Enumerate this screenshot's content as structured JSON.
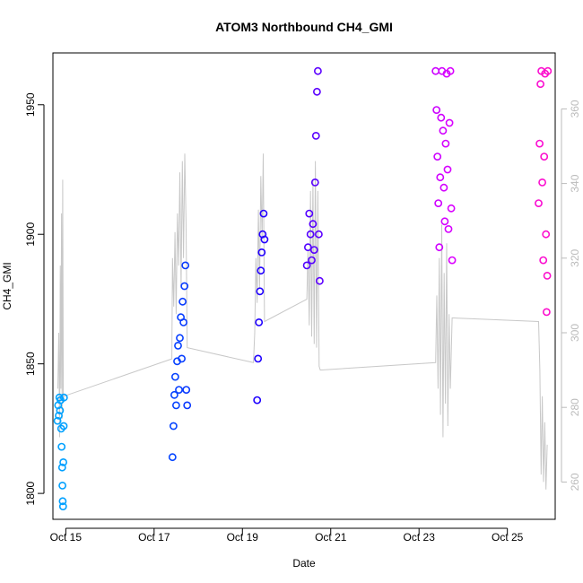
{
  "chart_data": {
    "type": "scatter",
    "title": "ATOM3 Northbound CH4_GMI",
    "xlabel": "Date",
    "ylabel": "CH4_GMI",
    "y2label": "",
    "grid": false,
    "legend": "none",
    "x_range": [
      "2016-10-14T17:00",
      "2016-10-26T02:00"
    ],
    "ylim": [
      1790,
      1970
    ],
    "y2lim": [
      250,
      375
    ],
    "x_ticks": [
      {
        "date": "2016-10-15",
        "label": "Oct 15"
      },
      {
        "date": "2016-10-17",
        "label": "Oct 17"
      },
      {
        "date": "2016-10-19",
        "label": "Oct 19"
      },
      {
        "date": "2016-10-21",
        "label": "Oct 21"
      },
      {
        "date": "2016-10-23",
        "label": "Oct 23"
      },
      {
        "date": "2016-10-25",
        "label": "Oct 25"
      }
    ],
    "y_ticks": [
      1800,
      1850,
      1900,
      1950
    ],
    "y2_ticks": [
      260,
      280,
      300,
      320,
      340,
      360
    ],
    "colors": {
      "secondary_line": "#c8c8c8",
      "axis": "#000000",
      "right_axis": "#bbbbbb",
      "point_gradient": [
        "#00a8ff",
        "#0055ff",
        "#1a00ff",
        "#8000ff",
        "#dd00ff",
        "#ff10c8"
      ]
    },
    "series": [
      {
        "type": "line",
        "axis": "right",
        "points": [
          [
            "2016-10-14T19:40",
            285
          ],
          [
            "2016-10-14T20:10",
            300
          ],
          [
            "2016-10-14T20:40",
            272
          ],
          [
            "2016-10-14T21:00",
            318
          ],
          [
            "2016-10-14T21:20",
            285
          ],
          [
            "2016-10-14T21:40",
            332
          ],
          [
            "2016-10-14T22:00",
            277
          ],
          [
            "2016-10-14T22:20",
            341
          ],
          [
            "2016-10-14T22:40",
            282
          ],
          [
            "2016-10-14T23:00",
            283
          ],
          [
            "2016-10-17T09:40",
            293
          ],
          [
            "2016-10-17T10:00",
            320
          ],
          [
            "2016-10-17T10:40",
            307
          ],
          [
            "2016-10-17T11:20",
            327
          ],
          [
            "2016-10-17T12:00",
            305
          ],
          [
            "2016-10-17T12:40",
            332
          ],
          [
            "2016-10-17T13:20",
            318
          ],
          [
            "2016-10-17T14:00",
            343
          ],
          [
            "2016-10-17T14:40",
            312
          ],
          [
            "2016-10-17T15:20",
            346
          ],
          [
            "2016-10-17T16:00",
            320
          ],
          [
            "2016-10-17T16:40",
            348
          ],
          [
            "2016-10-17T17:20",
            330
          ],
          [
            "2016-10-17T18:00",
            296
          ],
          [
            "2016-10-19T06:00",
            292
          ],
          [
            "2016-10-19T06:40",
            300
          ],
          [
            "2016-10-19T07:20",
            320
          ],
          [
            "2016-10-19T08:00",
            308
          ],
          [
            "2016-10-19T08:40",
            333
          ],
          [
            "2016-10-19T09:20",
            312
          ],
          [
            "2016-10-19T10:00",
            342
          ],
          [
            "2016-10-19T10:40",
            325
          ],
          [
            "2016-10-19T11:20",
            348
          ],
          [
            "2016-10-19T12:00",
            303
          ],
          [
            "2016-10-20T11:00",
            309
          ],
          [
            "2016-10-20T11:40",
            322
          ],
          [
            "2016-10-20T12:20",
            302
          ],
          [
            "2016-10-20T13:00",
            338
          ],
          [
            "2016-10-20T13:40",
            299
          ],
          [
            "2016-10-20T14:20",
            341
          ],
          [
            "2016-10-20T15:00",
            297
          ],
          [
            "2016-10-20T15:40",
            346
          ],
          [
            "2016-10-20T16:20",
            296
          ],
          [
            "2016-10-20T17:00",
            338
          ],
          [
            "2016-10-20T17:40",
            291
          ],
          [
            "2016-10-20T18:20",
            290
          ],
          [
            "2016-10-23T09:00",
            292
          ],
          [
            "2016-10-23T09:40",
            310
          ],
          [
            "2016-10-23T10:20",
            285
          ],
          [
            "2016-10-23T11:00",
            320
          ],
          [
            "2016-10-23T11:40",
            278
          ],
          [
            "2016-10-23T12:20",
            329
          ],
          [
            "2016-10-23T13:00",
            272
          ],
          [
            "2016-10-23T13:40",
            316
          ],
          [
            "2016-10-23T14:20",
            281
          ],
          [
            "2016-10-23T15:00",
            324
          ],
          [
            "2016-10-23T15:40",
            275
          ],
          [
            "2016-10-23T16:20",
            305
          ],
          [
            "2016-10-23T17:00",
            285
          ],
          [
            "2016-10-23T18:00",
            304
          ],
          [
            "2016-10-25T17:00",
            303
          ],
          [
            "2016-10-25T17:40",
            290
          ],
          [
            "2016-10-25T18:20",
            262
          ],
          [
            "2016-10-25T19:00",
            283
          ],
          [
            "2016-10-25T19:40",
            260
          ],
          [
            "2016-10-25T20:20",
            276
          ],
          [
            "2016-10-25T21:00",
            258
          ],
          [
            "2016-10-25T21:40",
            270
          ]
        ]
      },
      {
        "type": "scatter",
        "axis": "left",
        "marker": "open-circle",
        "points": [
          [
            "2016-10-14T19:30",
            1828
          ],
          [
            "2016-10-14T19:50",
            1834
          ],
          [
            "2016-10-14T20:10",
            1830
          ],
          [
            "2016-10-14T20:30",
            1837
          ],
          [
            "2016-10-14T20:50",
            1832
          ],
          [
            "2016-10-14T21:10",
            1836
          ],
          [
            "2016-10-14T21:30",
            1825
          ],
          [
            "2016-10-14T21:45",
            1818
          ],
          [
            "2016-10-14T22:00",
            1810
          ],
          [
            "2016-10-14T22:10",
            1803
          ],
          [
            "2016-10-14T22:20",
            1797
          ],
          [
            "2016-10-14T22:30",
            1795
          ],
          [
            "2016-10-14T22:40",
            1812
          ],
          [
            "2016-10-14T22:50",
            1826
          ],
          [
            "2016-10-14T23:00",
            1837
          ],
          [
            "2016-10-17T10:00",
            1814
          ],
          [
            "2016-10-17T10:30",
            1826
          ],
          [
            "2016-10-17T11:00",
            1838
          ],
          [
            "2016-10-17T11:30",
            1845
          ],
          [
            "2016-10-17T12:00",
            1834
          ],
          [
            "2016-10-17T12:30",
            1851
          ],
          [
            "2016-10-17T13:00",
            1857
          ],
          [
            "2016-10-17T13:30",
            1840
          ],
          [
            "2016-10-17T14:00",
            1860
          ],
          [
            "2016-10-17T14:30",
            1868
          ],
          [
            "2016-10-17T15:00",
            1852
          ],
          [
            "2016-10-17T15:30",
            1874
          ],
          [
            "2016-10-17T16:00",
            1866
          ],
          [
            "2016-10-17T16:30",
            1880
          ],
          [
            "2016-10-17T17:00",
            1888
          ],
          [
            "2016-10-17T17:30",
            1840
          ],
          [
            "2016-10-17T18:00",
            1834
          ],
          [
            "2016-10-19T08:00",
            1836
          ],
          [
            "2016-10-19T08:30",
            1852
          ],
          [
            "2016-10-19T09:00",
            1866
          ],
          [
            "2016-10-19T09:30",
            1878
          ],
          [
            "2016-10-19T10:00",
            1886
          ],
          [
            "2016-10-19T10:30",
            1893
          ],
          [
            "2016-10-19T11:00",
            1900
          ],
          [
            "2016-10-19T11:30",
            1908
          ],
          [
            "2016-10-19T12:00",
            1898
          ],
          [
            "2016-10-20T11:00",
            1888
          ],
          [
            "2016-10-20T11:40",
            1895
          ],
          [
            "2016-10-20T12:20",
            1908
          ],
          [
            "2016-10-20T13:00",
            1900
          ],
          [
            "2016-10-20T13:40",
            1890
          ],
          [
            "2016-10-20T14:20",
            1904
          ],
          [
            "2016-10-20T15:00",
            1894
          ],
          [
            "2016-10-20T15:30",
            1920
          ],
          [
            "2016-10-20T16:00",
            1938
          ],
          [
            "2016-10-20T16:30",
            1955
          ],
          [
            "2016-10-20T17:00",
            1963
          ],
          [
            "2016-10-20T17:30",
            1900
          ],
          [
            "2016-10-20T18:00",
            1882
          ],
          [
            "2016-10-23T09:00",
            1963
          ],
          [
            "2016-10-23T09:30",
            1948
          ],
          [
            "2016-10-23T10:00",
            1930
          ],
          [
            "2016-10-23T10:30",
            1912
          ],
          [
            "2016-10-23T11:00",
            1895
          ],
          [
            "2016-10-23T11:30",
            1922
          ],
          [
            "2016-10-23T12:00",
            1945
          ],
          [
            "2016-10-23T12:30",
            1963
          ],
          [
            "2016-10-23T13:00",
            1940
          ],
          [
            "2016-10-23T13:30",
            1918
          ],
          [
            "2016-10-23T14:00",
            1905
          ],
          [
            "2016-10-23T14:30",
            1935
          ],
          [
            "2016-10-23T15:00",
            1962
          ],
          [
            "2016-10-23T15:30",
            1925
          ],
          [
            "2016-10-23T16:00",
            1902
          ],
          [
            "2016-10-23T16:30",
            1943
          ],
          [
            "2016-10-23T17:00",
            1963
          ],
          [
            "2016-10-23T17:30",
            1910
          ],
          [
            "2016-10-23T18:00",
            1890
          ],
          [
            "2016-10-25T17:00",
            1912
          ],
          [
            "2016-10-25T17:30",
            1935
          ],
          [
            "2016-10-25T18:00",
            1958
          ],
          [
            "2016-10-25T18:30",
            1963
          ],
          [
            "2016-10-25T19:00",
            1920
          ],
          [
            "2016-10-25T19:30",
            1890
          ],
          [
            "2016-10-25T20:00",
            1930
          ],
          [
            "2016-10-25T20:30",
            1962
          ],
          [
            "2016-10-25T21:00",
            1900
          ],
          [
            "2016-10-25T21:20",
            1870
          ],
          [
            "2016-10-25T21:40",
            1884
          ],
          [
            "2016-10-25T22:00",
            1963
          ]
        ]
      }
    ]
  }
}
